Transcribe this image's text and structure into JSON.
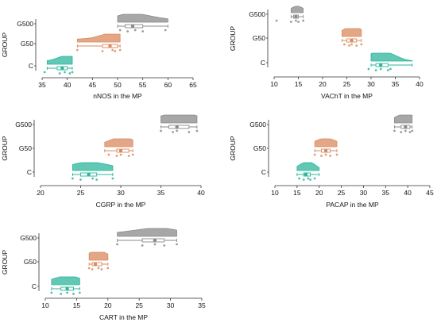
{
  "colors": {
    "C": "#2bb59b",
    "G50": "#d98a5f",
    "G500": "#8a8a8a"
  },
  "chart_data": [
    {
      "type": "raincloud",
      "xlabel": "nNOS in the MP",
      "ylabel": "GROUP",
      "xlim": [
        35,
        65
      ],
      "xticks": [
        35,
        40,
        45,
        50,
        55,
        60,
        65
      ],
      "categories": [
        "C",
        "G50",
        "G500"
      ],
      "series": [
        {
          "name": "G500",
          "box": [
            50,
            51.5,
            53,
            55,
            60
          ],
          "mean": 53,
          "points": [
            50.5,
            52,
            53.5,
            55,
            59.5
          ]
        },
        {
          "name": "G50",
          "box": [
            42,
            47,
            48.5,
            50,
            50.5
          ],
          "mean": 48.5,
          "points": [
            42,
            47,
            49,
            49.5,
            50.5
          ]
        },
        {
          "name": "C",
          "box": [
            36,
            38,
            39,
            40,
            41
          ],
          "mean": 39,
          "points": [
            35.5,
            38.5,
            39.5,
            40.5,
            41
          ]
        }
      ]
    },
    {
      "type": "raincloud",
      "xlabel": "VAChT in the MP",
      "ylabel": "GROUP",
      "xlim": [
        10,
        40
      ],
      "xticks": [
        10,
        15,
        20,
        25,
        30,
        35,
        40
      ],
      "categories": [
        "C",
        "G50",
        "G500"
      ],
      "series": [
        {
          "name": "G500",
          "box": [
            13.5,
            14,
            14.5,
            15,
            16
          ],
          "mean": 14.5,
          "points": [
            10.5,
            13.5,
            14.5,
            15,
            16
          ]
        },
        {
          "name": "G50",
          "box": [
            24,
            25,
            26,
            27,
            28
          ],
          "mean": 26,
          "points": [
            24.5,
            25.5,
            26,
            27,
            28
          ]
        },
        {
          "name": "C",
          "box": [
            30,
            31,
            32,
            33.5,
            38.5
          ],
          "mean": 32,
          "points": [
            29.5,
            31,
            32,
            33.5,
            34
          ]
        }
      ]
    },
    {
      "type": "raincloud",
      "xlabel": "CGRP in the MP",
      "ylabel": "GROUP",
      "xlim": [
        20,
        40
      ],
      "xticks": [
        20,
        25,
        30,
        35,
        40
      ],
      "categories": [
        "C",
        "G50",
        "G500"
      ],
      "series": [
        {
          "name": "G500",
          "box": [
            35,
            36,
            37,
            38.5,
            39.5
          ],
          "mean": 37,
          "points": [
            35,
            36.5,
            37,
            38.5,
            39.5
          ]
        },
        {
          "name": "G50",
          "box": [
            28,
            29.5,
            30,
            31,
            31.5
          ],
          "mean": 30,
          "points": [
            28.5,
            29.5,
            30,
            31,
            31.5
          ]
        },
        {
          "name": "C",
          "box": [
            24,
            25,
            26,
            27,
            29
          ],
          "mean": 26,
          "points": [
            24,
            25,
            26.5,
            27,
            29
          ]
        }
      ]
    },
    {
      "type": "raincloud",
      "xlabel": "PACAP in the MP",
      "ylabel": "GROUP",
      "xlim": [
        10,
        45
      ],
      "xticks": [
        10,
        15,
        20,
        25,
        30,
        35,
        40,
        45
      ],
      "categories": [
        "C",
        "G50",
        "G500"
      ],
      "series": [
        {
          "name": "G500",
          "box": [
            37,
            38.5,
            39.5,
            40.5,
            41
          ],
          "mean": 39.5,
          "points": [
            37,
            38.5,
            39.5,
            40.5,
            41
          ]
        },
        {
          "name": "G50",
          "box": [
            19,
            20.5,
            21.5,
            22.5,
            24
          ],
          "mean": 21.5,
          "points": [
            19,
            20.5,
            21.5,
            22.5,
            24
          ]
        },
        {
          "name": "C",
          "box": [
            15,
            16.5,
            17,
            18,
            20
          ],
          "mean": 17,
          "points": [
            15.5,
            16.5,
            17.5,
            18,
            19
          ]
        }
      ]
    },
    {
      "type": "raincloud",
      "xlabel": "CART in the MP",
      "ylabel": "GROUP",
      "xlim": [
        10,
        35
      ],
      "xticks": [
        10,
        15,
        20,
        25,
        30,
        35
      ],
      "categories": [
        "C",
        "G50",
        "G500"
      ],
      "series": [
        {
          "name": "G500",
          "box": [
            21.5,
            25.5,
            27.5,
            29,
            31
          ],
          "mean": 27.5,
          "points": [
            21.5,
            25.5,
            27.5,
            29,
            31
          ]
        },
        {
          "name": "G50",
          "box": [
            17,
            17.5,
            18,
            19,
            20
          ],
          "mean": 18,
          "points": [
            17,
            17.5,
            18.5,
            19,
            20
          ]
        },
        {
          "name": "C",
          "box": [
            11,
            12.5,
            13.5,
            14.5,
            15.5
          ],
          "mean": 13.5,
          "points": [
            11,
            12.5,
            13.5,
            14.5,
            15.5
          ]
        }
      ]
    }
  ]
}
